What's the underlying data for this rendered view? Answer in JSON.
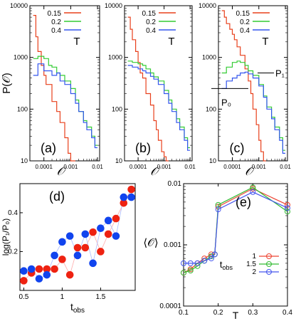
{
  "chart_data": [
    {
      "type": "line",
      "panel_label": "(a)",
      "xscale": "log",
      "yscale": "log",
      "xlim": [
        3e-05,
        0.012
      ],
      "ylim": [
        10,
        10000
      ],
      "ylabel": "P(𝒪)",
      "xlabel": "𝒪",
      "xticks": [
        "0.0001",
        "0.001",
        "0.01"
      ],
      "yticks": [
        "10",
        "100",
        "1000",
        "10000"
      ],
      "legend_title": "T",
      "series": [
        {
          "name": "0.15",
          "color": "#e8401c",
          "x": [
            4e-05,
            5e-05,
            6e-05,
            8e-05,
            0.0001,
            0.00012,
            0.00015,
            0.0002,
            0.00025,
            0.0003,
            0.0004,
            0.0005,
            0.0006,
            0.0008,
            0.001,
            0.0012
          ],
          "y": [
            6500,
            2500,
            1300,
            700,
            450,
            300,
            300,
            140,
            140,
            90,
            55,
            55,
            28,
            14,
            10,
            10
          ]
        },
        {
          "name": "0.2",
          "color": "#33cc33",
          "x": [
            4e-05,
            6e-05,
            0.0001,
            0.00015,
            0.0002,
            0.0003,
            0.0004,
            0.0006,
            0.001,
            0.0015,
            0.002,
            0.003,
            0.004,
            0.006,
            0.008
          ],
          "y": [
            950,
            1050,
            950,
            700,
            650,
            500,
            450,
            350,
            250,
            150,
            90,
            60,
            45,
            30,
            20
          ]
        },
        {
          "name": "0.4",
          "color": "#3355ee",
          "x": [
            4e-05,
            6e-05,
            0.0001,
            0.00015,
            0.0002,
            0.0003,
            0.0004,
            0.0006,
            0.001,
            0.0015,
            0.002,
            0.003,
            0.004,
            0.006,
            0.008
          ],
          "y": [
            450,
            750,
            550,
            550,
            450,
            500,
            350,
            300,
            200,
            130,
            90,
            55,
            40,
            28,
            18
          ]
        }
      ]
    },
    {
      "type": "line",
      "panel_label": "(b)",
      "xscale": "log",
      "yscale": "log",
      "xlim": [
        3e-05,
        0.012
      ],
      "ylim": [
        10,
        10000
      ],
      "xlabel": "𝒪",
      "xticks": [
        "0.0001",
        "0.001",
        "0.01"
      ],
      "yticks": [
        "10",
        "100",
        "1000",
        "10000"
      ],
      "legend_title": "T",
      "series": [
        {
          "name": "0.15",
          "color": "#e8401c",
          "x": [
            4e-05,
            5e-05,
            6e-05,
            8e-05,
            0.0001,
            0.00012,
            0.00015,
            0.0002,
            0.0003,
            0.0004,
            0.0005,
            0.0006,
            0.0008,
            0.001,
            0.0012
          ],
          "y": [
            6000,
            3500,
            2200,
            1300,
            800,
            500,
            400,
            200,
            120,
            60,
            40,
            25,
            15,
            12,
            10
          ]
        },
        {
          "name": "0.2",
          "color": "#33cc33",
          "x": [
            4e-05,
            6e-05,
            0.0001,
            0.00015,
            0.0002,
            0.0003,
            0.0004,
            0.0006,
            0.001,
            0.0015,
            0.002,
            0.003,
            0.004,
            0.006,
            0.008
          ],
          "y": [
            850,
            800,
            750,
            700,
            600,
            500,
            420,
            350,
            230,
            150,
            100,
            65,
            45,
            28,
            18
          ]
        },
        {
          "name": "0.4",
          "color": "#3355ee",
          "x": [
            4e-05,
            6e-05,
            0.0001,
            0.00015,
            0.0002,
            0.0003,
            0.0004,
            0.0006,
            0.001,
            0.0015,
            0.002,
            0.003,
            0.004,
            0.006,
            0.008
          ],
          "y": [
            700,
            650,
            600,
            550,
            500,
            430,
            380,
            300,
            200,
            130,
            90,
            55,
            40,
            25,
            16
          ]
        }
      ]
    },
    {
      "type": "line",
      "panel_label": "(c)",
      "xscale": "log",
      "yscale": "log",
      "xlim": [
        3e-05,
        0.012
      ],
      "ylim": [
        10,
        10000
      ],
      "xlabel": "𝒪",
      "xticks": [
        "0.0001",
        "0.001",
        "0.01"
      ],
      "yticks": [
        "10",
        "100",
        "1000",
        "10000"
      ],
      "legend_title": "T",
      "annotations": [
        {
          "text": "P₁",
          "y": 500
        },
        {
          "text": "P₀",
          "y": 250
        }
      ],
      "series": [
        {
          "name": "0.15",
          "color": "#e8401c",
          "x": [
            4e-05,
            5e-05,
            6e-05,
            8e-05,
            0.0001,
            0.00012,
            0.00015,
            0.0002,
            0.0003,
            0.0004,
            0.0005,
            0.0006,
            0.0008,
            0.001,
            0.0012,
            0.0015
          ],
          "y": [
            8000,
            6000,
            4500,
            3500,
            2800,
            2200,
            1600,
            1100,
            600,
            350,
            200,
            100,
            50,
            25,
            15,
            10
          ]
        },
        {
          "name": "0.2",
          "color": "#33cc33",
          "x": [
            4e-05,
            6e-05,
            0.0001,
            0.00015,
            0.0002,
            0.0003,
            0.0004,
            0.0006,
            0.001,
            0.0015,
            0.002,
            0.003,
            0.004,
            0.006,
            0.008
          ],
          "y": [
            500,
            650,
            800,
            850,
            800,
            700,
            550,
            450,
            300,
            180,
            110,
            70,
            45,
            28,
            16
          ]
        },
        {
          "name": "0.4",
          "color": "#3355ee",
          "x": [
            4e-05,
            6e-05,
            0.0001,
            0.00015,
            0.0002,
            0.0003,
            0.0004,
            0.0006,
            0.001,
            0.0015,
            0.002,
            0.003,
            0.004,
            0.006,
            0.008
          ],
          "y": [
            250,
            350,
            400,
            450,
            500,
            520,
            480,
            400,
            280,
            170,
            100,
            65,
            40,
            25,
            14
          ]
        }
      ]
    },
    {
      "type": "scatter",
      "panel_label": "(d)",
      "xlim": [
        0.45,
        1.95
      ],
      "ylim": [
        0,
        0.55
      ],
      "xlabel": "t_obs",
      "ylabel": "log(P₁/P₀)",
      "xticks": [
        "0.5",
        "1",
        "1.5"
      ],
      "yticks": [
        "0.2",
        "0.4"
      ],
      "series": [
        {
          "color": "#ee2211",
          "x": [
            0.5,
            0.6,
            0.7,
            0.8,
            0.9,
            1.0,
            1.1,
            1.2,
            1.3,
            1.4,
            1.5,
            1.6,
            1.7,
            1.8,
            1.9
          ],
          "y": [
            0.05,
            0.09,
            0.11,
            0.11,
            0.11,
            0.16,
            0.08,
            0.22,
            0.22,
            0.3,
            0.2,
            0.29,
            0.37,
            0.45,
            0.52
          ]
        },
        {
          "color": "#1144ee",
          "x": [
            0.5,
            0.6,
            0.7,
            0.8,
            0.9,
            1.0,
            1.1,
            1.2,
            1.3,
            1.4,
            1.5,
            1.6,
            1.7,
            1.8,
            1.9
          ],
          "y": [
            0.1,
            0.11,
            0.06,
            0.08,
            0.18,
            0.25,
            0.28,
            0.18,
            0.29,
            0.14,
            0.32,
            0.36,
            0.28,
            0.48,
            0.48
          ]
        }
      ]
    },
    {
      "type": "line",
      "panel_label": "(e)",
      "yscale": "log",
      "xlim": [
        0.1,
        0.4
      ],
      "ylim": [
        0.0001,
        0.01
      ],
      "xlabel": "T",
      "ylabel": "⟨𝒪⟩",
      "xticks": [
        "0.1",
        "0.2",
        "0.3",
        "0.4"
      ],
      "yticks": [
        "0.0001",
        "0.001",
        "0.01"
      ],
      "legend_title": "t_obs",
      "series": [
        {
          "name": "1",
          "color": "#ee4433",
          "x": [
            0.1,
            0.12,
            0.14,
            0.16,
            0.18,
            0.19,
            0.2,
            0.3,
            0.4
          ],
          "y": [
            0.00035,
            0.0004,
            0.0005,
            0.0006,
            0.0007,
            0.0007,
            0.0042,
            0.0083,
            0.0045
          ]
        },
        {
          "name": "1.5",
          "color": "#33bb33",
          "x": [
            0.1,
            0.12,
            0.14,
            0.16,
            0.18,
            0.19,
            0.2,
            0.3,
            0.4
          ],
          "y": [
            0.00035,
            0.00038,
            0.00045,
            0.00055,
            0.00065,
            0.0007,
            0.0045,
            0.0087,
            0.0035
          ]
        },
        {
          "name": "2",
          "color": "#4455ee",
          "x": [
            0.1,
            0.12,
            0.14,
            0.16,
            0.18,
            0.19,
            0.2,
            0.3,
            0.4
          ],
          "y": [
            0.0005,
            0.0005,
            0.0005,
            0.00055,
            0.0006,
            0.0007,
            0.0038,
            0.0073,
            0.004
          ]
        }
      ]
    }
  ]
}
